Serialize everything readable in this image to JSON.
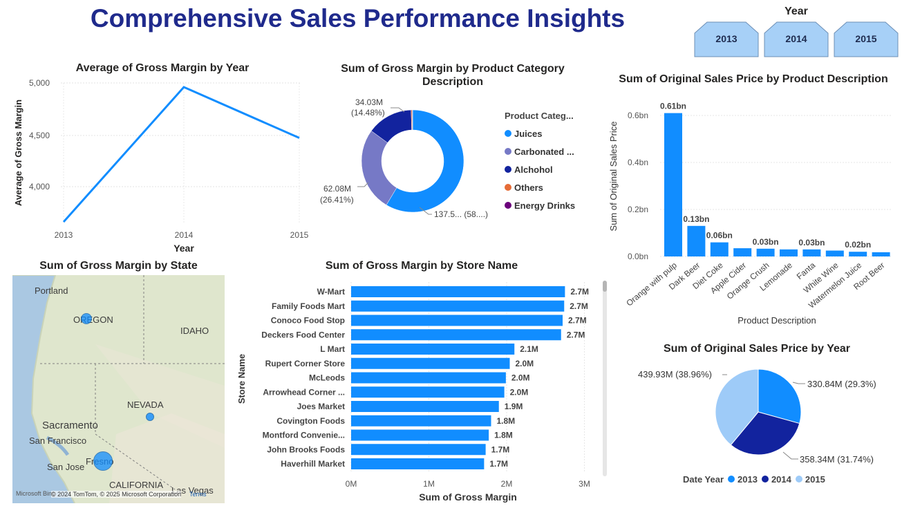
{
  "title": "Comprehensive Sales Performance Insights",
  "slicer": {
    "title": "Year",
    "options": [
      "2013",
      "2014",
      "2015"
    ]
  },
  "line_chart": {
    "title": "Average of Gross Margin by Year",
    "xlabel": "Year",
    "ylabel": "Average of Gross Margin",
    "yticks": [
      "5,000",
      "4,500",
      "4,000"
    ],
    "xticks": [
      "2013",
      "2014",
      "2015"
    ]
  },
  "donut_chart": {
    "title_line1": "Sum of Gross Margin by Product Category",
    "title_line2": "Description",
    "legend_title": "Product Categ...",
    "legend": [
      "Juices",
      "Carbonated ...",
      "Alchohol",
      "Others",
      "Energy Drinks"
    ],
    "labels": {
      "alchohol_1": "34.03M",
      "alchohol_2": "(14.48%)",
      "carbonated_1": "62.08M",
      "carbonated_2": "(26.41%)",
      "juices": "137.5... (58....)"
    }
  },
  "product_bar": {
    "title": "Sum of Original Sales Price by Product Description",
    "xlabel": "Product Description",
    "ylabel": "Sum of Original Sales Price",
    "yticks": [
      "0.6bn",
      "0.4bn",
      "0.2bn",
      "0.0bn"
    ]
  },
  "map": {
    "title": "Sum of Gross Margin by State",
    "labels": [
      "Portland",
      "OREGON",
      "IDAHO",
      "NEVADA",
      "Sacramento",
      "San Francisco",
      "San Jose",
      "Fresno",
      "CALIFORNIA",
      "Las Vegas"
    ],
    "attribution": "© 2024 TomTom, © 2025 Microsoft Corporation",
    "terms": "Terms",
    "brand": "Microsoft Bing"
  },
  "store_bar": {
    "title": "Sum of Gross Margin by Store Name",
    "xlabel": "Sum of Gross Margin",
    "ylabel": "Store Name",
    "xticks": [
      "0M",
      "1M",
      "2M",
      "3M"
    ]
  },
  "pie_chart": {
    "title": "Sum of Original Sales Price by Year",
    "labels": [
      "330.84M (29.3%)",
      "358.34M (31.74%)",
      "439.93M (38.96%)"
    ],
    "legend_title": "Date Year",
    "legend": [
      "2013",
      "2014",
      "2015"
    ]
  },
  "colors": {
    "title": "#1f2a8c",
    "blue": "#118dff",
    "dark_blue": "#12239e",
    "light_blue": "#9ecbf8",
    "slicer_fill": "#a7d0f7",
    "purple_gray": "#7679c6",
    "orange": "#e66c37",
    "purple": "#6b007b"
  },
  "chart_data": [
    {
      "type": "line",
      "title": "Average of Gross Margin by Year",
      "xlabel": "Year",
      "ylabel": "Average of Gross Margin",
      "x": [
        "2013",
        "2014",
        "2015"
      ],
      "series": [
        {
          "values": [
            3660,
            4960,
            4470
          ]
        }
      ],
      "ylim": [
        3650,
        5000
      ]
    },
    {
      "type": "pie",
      "title": "Sum of Gross Margin by Product Category Description",
      "categories": [
        "Juices",
        "Carbonated ...",
        "Alchohol",
        "Others",
        "Energy Drinks"
      ],
      "values": [
        137.5,
        62.08,
        34.03,
        0.8,
        0.3
      ],
      "legend_title": "Product Categ..."
    },
    {
      "type": "bar",
      "title": "Sum of Original Sales Price by Product Description",
      "xlabel": "Product Description",
      "ylabel": "Sum of Original Sales Price",
      "categories": [
        "Orange with pulp",
        "Dark Beer",
        "Diet Coke",
        "Apple Cider",
        "Orange Crush",
        "Lemonade",
        "Fanta",
        "White Wine",
        "Watermelon Juice",
        "Root Beer"
      ],
      "values": [
        0.61,
        0.13,
        0.06,
        0.035,
        0.033,
        0.03,
        0.03,
        0.025,
        0.02,
        0.018
      ],
      "data_labels": [
        "0.61bn",
        "0.13bn",
        "0.06bn",
        "",
        "0.03bn",
        "",
        "0.03bn",
        "",
        "0.02bn",
        ""
      ],
      "ylim": [
        0,
        0.6
      ]
    },
    {
      "type": "bar",
      "title": "Sum of Gross Margin by Store Name",
      "xlabel": "Sum of Gross Margin",
      "ylabel": "Store Name",
      "categories": [
        "W-Mart",
        "Family Foods Mart",
        "Conoco Food Stop",
        "Deckers Food Center",
        "L Mart",
        "Rupert Corner Store",
        "McLeods",
        "Arrowhead Corner ...",
        "Joes Market",
        "Covington Foods",
        "Montford Convenie...",
        "John Brooks Foods",
        "Haverhill Market"
      ],
      "values": [
        2.75,
        2.74,
        2.72,
        2.7,
        2.1,
        2.04,
        1.99,
        1.97,
        1.9,
        1.8,
        1.77,
        1.73,
        1.71
      ],
      "data_labels": [
        "2.7M",
        "2.7M",
        "2.7M",
        "2.7M",
        "2.1M",
        "2.0M",
        "2.0M",
        "2.0M",
        "1.9M",
        "1.8M",
        "1.8M",
        "1.7M",
        "1.7M"
      ],
      "xlim": [
        0,
        3
      ]
    },
    {
      "type": "pie",
      "title": "Sum of Original Sales Price by Year",
      "categories": [
        "2013",
        "2014",
        "2015"
      ],
      "values": [
        330.84,
        358.34,
        439.93
      ],
      "legend_title": "Date Year"
    }
  ]
}
